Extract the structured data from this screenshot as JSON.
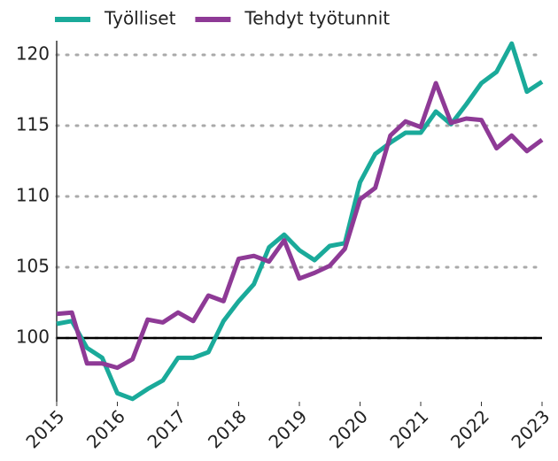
{
  "chart_data": {
    "type": "line",
    "x": [
      2015,
      2015.25,
      2015.5,
      2015.75,
      2016,
      2016.25,
      2016.5,
      2016.75,
      2017,
      2017.25,
      2017.5,
      2017.75,
      2018,
      2018.25,
      2018.5,
      2018.75,
      2019,
      2019.25,
      2019.5,
      2019.75,
      2020,
      2020.25,
      2020.5,
      2020.75,
      2021,
      2021.25,
      2021.5,
      2021.75,
      2022,
      2022.25,
      2022.5,
      2022.75,
      2023
    ],
    "series": [
      {
        "name": "Työlliset",
        "color": "#1aaa9a",
        "values": [
          101.0,
          101.2,
          99.3,
          98.6,
          96.1,
          95.7,
          96.4,
          97.0,
          98.6,
          98.6,
          99.0,
          101.2,
          102.6,
          103.8,
          106.4,
          107.3,
          106.2,
          105.5,
          106.5,
          106.7,
          111.0,
          113.0,
          113.8,
          114.5,
          114.5,
          116.0,
          115.1,
          116.5,
          118.0,
          118.8,
          120.8,
          117.4,
          118.1
        ]
      },
      {
        "name": "Tehdyt työtunnit",
        "color": "#8e3a96",
        "values": [
          101.7,
          101.8,
          98.2,
          98.2,
          97.9,
          98.5,
          101.3,
          101.1,
          101.8,
          101.2,
          103.0,
          102.6,
          105.6,
          105.8,
          105.4,
          106.9,
          104.2,
          104.6,
          105.1,
          106.3,
          109.8,
          110.6,
          114.3,
          115.3,
          114.9,
          118.0,
          115.2,
          115.5,
          115.4,
          113.4,
          114.3,
          113.2,
          114.0
        ]
      }
    ],
    "xlim": [
      2015,
      2023
    ],
    "xticks": [
      2015,
      2016,
      2017,
      2018,
      2019,
      2020,
      2021,
      2022,
      2023
    ],
    "ylim": [
      95.5,
      121
    ],
    "yticks": [
      100,
      105,
      110,
      115,
      120
    ],
    "grid": true,
    "reference_line": 100,
    "legend": "top"
  }
}
